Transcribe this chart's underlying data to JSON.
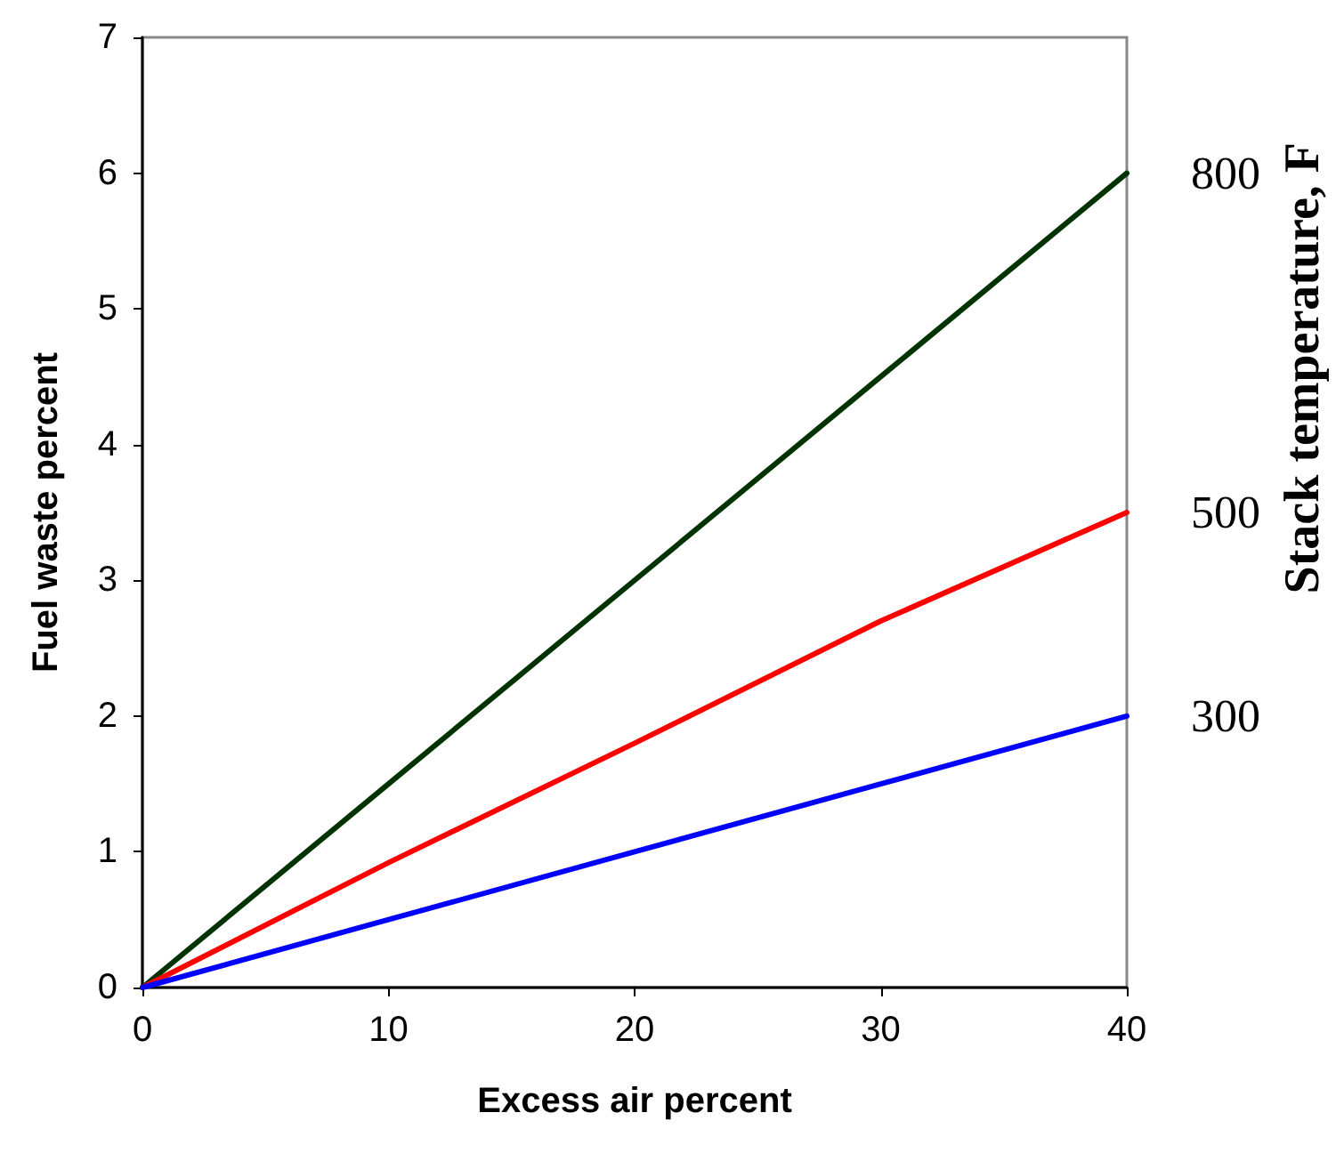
{
  "chart_data": {
    "type": "line",
    "xlabel": "Excess air percent",
    "ylabel": "Fuel waste percent",
    "y2label": "Stack temperature, F",
    "x": [
      0,
      10,
      20,
      30,
      40
    ],
    "xlim": [
      0,
      40
    ],
    "xticks": [
      0,
      10,
      20,
      30,
      40
    ],
    "ylim": [
      0,
      7
    ],
    "yticks": [
      0,
      1,
      2,
      3,
      4,
      5,
      6,
      7
    ],
    "grid": false,
    "legend": false,
    "marker": "none",
    "line_style": "solid",
    "series": [
      {
        "name": "800",
        "color": "#003300",
        "values": [
          0,
          1.5,
          3,
          4.5,
          6
        ]
      },
      {
        "name": "500",
        "color": "#ff0000",
        "values": [
          0,
          0.92,
          1.8,
          2.7,
          3.5
        ]
      },
      {
        "name": "300",
        "color": "#0000ff",
        "values": [
          0,
          0.5,
          1,
          1.5,
          2
        ]
      }
    ]
  }
}
